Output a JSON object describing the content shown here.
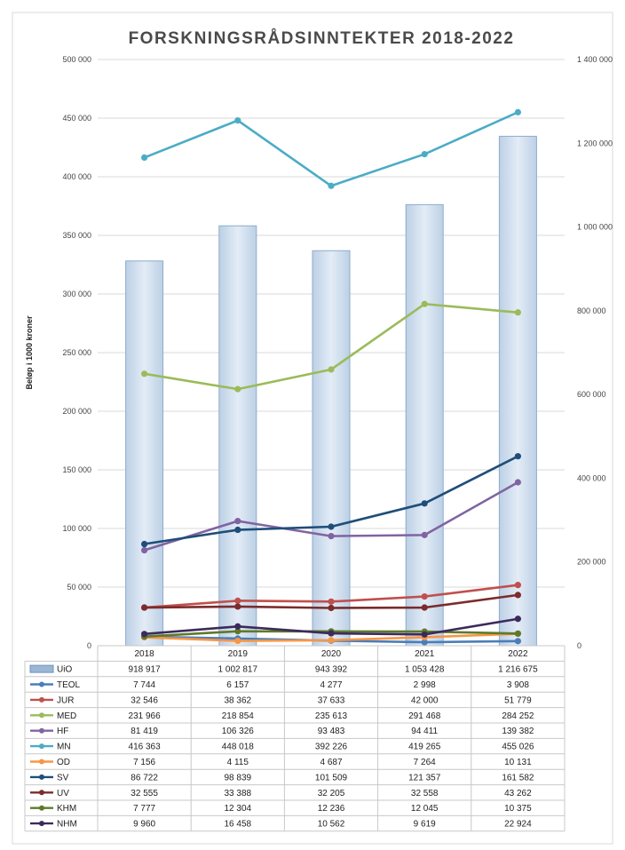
{
  "chart_data": {
    "type": "bar+line",
    "title": "FORSKNINGSRÅDSINNTEKTER 2018-2022",
    "ylabel": "Beløp i 1000 kroner",
    "categories": [
      "2018",
      "2019",
      "2020",
      "2021",
      "2022"
    ],
    "ylim_left": [
      0,
      500000
    ],
    "yticks_left": [
      "0",
      "50 000",
      "100 000",
      "150 000",
      "200 000",
      "250 000",
      "300 000",
      "350 000",
      "400 000",
      "450 000",
      "500 000"
    ],
    "ylim_right": [
      0,
      1400000
    ],
    "yticks_right": [
      "0",
      "200 000",
      "400 000",
      "600 000",
      "800 000",
      "1 000 000",
      "1 200 000",
      "1 400 000"
    ],
    "gridlines": true,
    "legend": "data-table",
    "series": [
      {
        "name": "UiO",
        "type": "bar",
        "axis": "right",
        "color": "#9bb7d4",
        "values": [
          918917,
          1002817,
          943392,
          1053428,
          1216675
        ],
        "labels": [
          "918 917",
          "1 002 817",
          "943 392",
          "1 053 428",
          "1 216 675"
        ]
      },
      {
        "name": "TEOL",
        "type": "line",
        "axis": "left",
        "color": "#4a7ebb",
        "values": [
          7744,
          6157,
          4277,
          2998,
          3908
        ],
        "labels": [
          "7 744",
          "6 157",
          "4 277",
          "2 998",
          "3 908"
        ]
      },
      {
        "name": "JUR",
        "type": "line",
        "axis": "left",
        "color": "#c0504d",
        "values": [
          32546,
          38362,
          37633,
          42000,
          51779
        ],
        "labels": [
          "32 546",
          "38 362",
          "37 633",
          "42 000",
          "51 779"
        ]
      },
      {
        "name": "MED",
        "type": "line",
        "axis": "left",
        "color": "#9bbb59",
        "values": [
          231966,
          218854,
          235613,
          291468,
          284252
        ],
        "labels": [
          "231 966",
          "218 854",
          "235 613",
          "291 468",
          "284 252"
        ]
      },
      {
        "name": "HF",
        "type": "line",
        "axis": "left",
        "color": "#8064a2",
        "values": [
          81419,
          106326,
          93483,
          94411,
          139382
        ],
        "labels": [
          "81 419",
          "106 326",
          "93 483",
          "94 411",
          "139 382"
        ]
      },
      {
        "name": "MN",
        "type": "line",
        "axis": "left",
        "color": "#4bacc6",
        "values": [
          416363,
          448018,
          392226,
          419265,
          455026
        ],
        "labels": [
          "416 363",
          "448 018",
          "392 226",
          "419 265",
          "455 026"
        ]
      },
      {
        "name": "OD",
        "type": "line",
        "axis": "left",
        "color": "#f79646",
        "values": [
          7156,
          4115,
          4687,
          7264,
          10131
        ],
        "labels": [
          "7 156",
          "4 115",
          "4 687",
          "7 264",
          "10 131"
        ]
      },
      {
        "name": "SV",
        "type": "line",
        "axis": "left",
        "color": "#1f4e79",
        "values": [
          86722,
          98839,
          101509,
          121357,
          161582
        ],
        "labels": [
          "86 722",
          "98 839",
          "101 509",
          "121 357",
          "161 582"
        ]
      },
      {
        "name": "UV",
        "type": "line",
        "axis": "left",
        "color": "#7b2c2c",
        "values": [
          32555,
          33388,
          32205,
          32558,
          43262
        ],
        "labels": [
          "32 555",
          "33 388",
          "32 205",
          "32 558",
          "43 262"
        ]
      },
      {
        "name": "KHM",
        "type": "line",
        "axis": "left",
        "color": "#5d7a2a",
        "values": [
          7777,
          12304,
          12236,
          12045,
          10375
        ],
        "labels": [
          "7 777",
          "12 304",
          "12 236",
          "12 045",
          "10 375"
        ]
      },
      {
        "name": "NHM",
        "type": "line",
        "axis": "left",
        "color": "#3d2a5c",
        "values": [
          9960,
          16458,
          10562,
          9619,
          22924
        ],
        "labels": [
          "9 960",
          "16 458",
          "10 562",
          "9 619",
          "22 924"
        ]
      }
    ]
  }
}
